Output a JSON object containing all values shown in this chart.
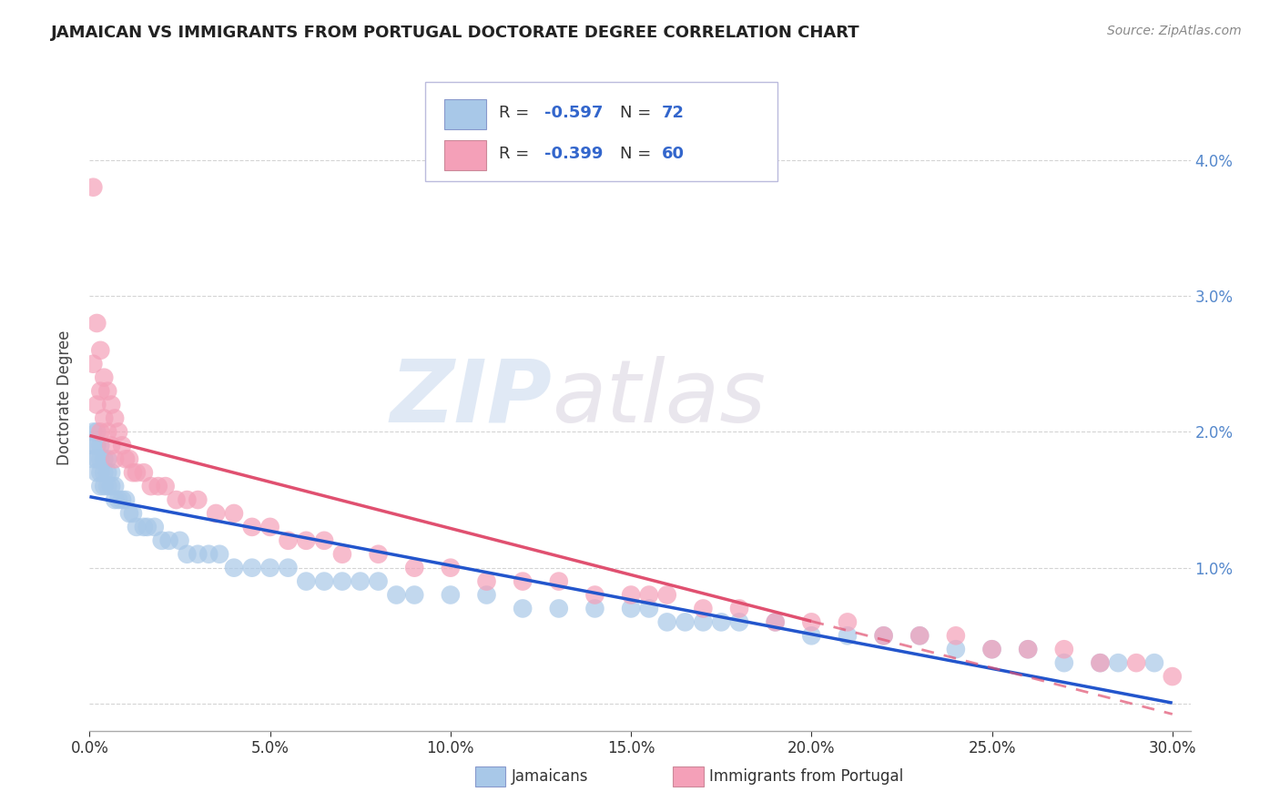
{
  "title": "JAMAICAN VS IMMIGRANTS FROM PORTUGAL DOCTORATE DEGREE CORRELATION CHART",
  "source": "Source: ZipAtlas.com",
  "ylabel": "Doctorate Degree",
  "xlim": [
    0.0,
    0.305
  ],
  "ylim": [
    -0.002,
    0.047
  ],
  "xticks": [
    0.0,
    0.05,
    0.1,
    0.15,
    0.2,
    0.25,
    0.3
  ],
  "xticklabels": [
    "0.0%",
    "5.0%",
    "10.0%",
    "15.0%",
    "20.0%",
    "25.0%",
    "30.0%"
  ],
  "yticks_left": [
    0.0,
    0.01,
    0.02,
    0.03,
    0.04
  ],
  "yticks_right": [
    0.0,
    0.01,
    0.02,
    0.03,
    0.04
  ],
  "yticklabels_left": [
    "",
    "",
    "",
    "",
    ""
  ],
  "yticklabels_right": [
    "",
    "1.0%",
    "2.0%",
    "3.0%",
    "4.0%"
  ],
  "jamaican_color": "#a8c8e8",
  "portugal_color": "#f4a0b8",
  "jamaica_line_color": "#2255cc",
  "portugal_line_color": "#e05070",
  "R_jamaican": -0.597,
  "N_jamaican": 72,
  "R_portugal": -0.399,
  "N_portugal": 60,
  "legend_label_1": "Jamaicans",
  "legend_label_2": "Immigrants from Portugal",
  "watermark_zip": "ZIP",
  "watermark_atlas": "atlas",
  "background_color": "#ffffff",
  "grid_color": "#d0d0d0",
  "jamaican_x": [
    0.001,
    0.001,
    0.001,
    0.002,
    0.002,
    0.002,
    0.002,
    0.003,
    0.003,
    0.003,
    0.003,
    0.004,
    0.004,
    0.004,
    0.005,
    0.005,
    0.005,
    0.006,
    0.006,
    0.007,
    0.007,
    0.008,
    0.009,
    0.01,
    0.011,
    0.012,
    0.013,
    0.015,
    0.016,
    0.018,
    0.02,
    0.022,
    0.025,
    0.027,
    0.03,
    0.033,
    0.036,
    0.04,
    0.045,
    0.05,
    0.055,
    0.06,
    0.065,
    0.07,
    0.075,
    0.08,
    0.085,
    0.09,
    0.1,
    0.11,
    0.12,
    0.13,
    0.14,
    0.15,
    0.155,
    0.16,
    0.165,
    0.17,
    0.175,
    0.18,
    0.19,
    0.2,
    0.21,
    0.22,
    0.23,
    0.24,
    0.25,
    0.26,
    0.27,
    0.28,
    0.285,
    0.295
  ],
  "jamaican_y": [
    0.02,
    0.019,
    0.018,
    0.02,
    0.019,
    0.018,
    0.017,
    0.019,
    0.018,
    0.017,
    0.016,
    0.018,
    0.017,
    0.016,
    0.018,
    0.017,
    0.016,
    0.017,
    0.016,
    0.016,
    0.015,
    0.015,
    0.015,
    0.015,
    0.014,
    0.014,
    0.013,
    0.013,
    0.013,
    0.013,
    0.012,
    0.012,
    0.012,
    0.011,
    0.011,
    0.011,
    0.011,
    0.01,
    0.01,
    0.01,
    0.01,
    0.009,
    0.009,
    0.009,
    0.009,
    0.009,
    0.008,
    0.008,
    0.008,
    0.008,
    0.007,
    0.007,
    0.007,
    0.007,
    0.007,
    0.006,
    0.006,
    0.006,
    0.006,
    0.006,
    0.006,
    0.005,
    0.005,
    0.005,
    0.005,
    0.004,
    0.004,
    0.004,
    0.003,
    0.003,
    0.003,
    0.003
  ],
  "portugal_x": [
    0.001,
    0.001,
    0.002,
    0.002,
    0.003,
    0.003,
    0.003,
    0.004,
    0.004,
    0.005,
    0.005,
    0.006,
    0.006,
    0.007,
    0.007,
    0.008,
    0.009,
    0.01,
    0.011,
    0.012,
    0.013,
    0.015,
    0.017,
    0.019,
    0.021,
    0.024,
    0.027,
    0.03,
    0.035,
    0.04,
    0.045,
    0.05,
    0.055,
    0.06,
    0.065,
    0.07,
    0.08,
    0.09,
    0.1,
    0.11,
    0.12,
    0.13,
    0.14,
    0.15,
    0.155,
    0.16,
    0.17,
    0.18,
    0.19,
    0.2,
    0.21,
    0.22,
    0.23,
    0.24,
    0.25,
    0.26,
    0.27,
    0.28,
    0.29,
    0.3
  ],
  "portugal_y": [
    0.038,
    0.025,
    0.028,
    0.022,
    0.026,
    0.023,
    0.02,
    0.024,
    0.021,
    0.023,
    0.02,
    0.022,
    0.019,
    0.021,
    0.018,
    0.02,
    0.019,
    0.018,
    0.018,
    0.017,
    0.017,
    0.017,
    0.016,
    0.016,
    0.016,
    0.015,
    0.015,
    0.015,
    0.014,
    0.014,
    0.013,
    0.013,
    0.012,
    0.012,
    0.012,
    0.011,
    0.011,
    0.01,
    0.01,
    0.009,
    0.009,
    0.009,
    0.008,
    0.008,
    0.008,
    0.008,
    0.007,
    0.007,
    0.006,
    0.006,
    0.006,
    0.005,
    0.005,
    0.005,
    0.004,
    0.004,
    0.004,
    0.003,
    0.003,
    0.002
  ]
}
